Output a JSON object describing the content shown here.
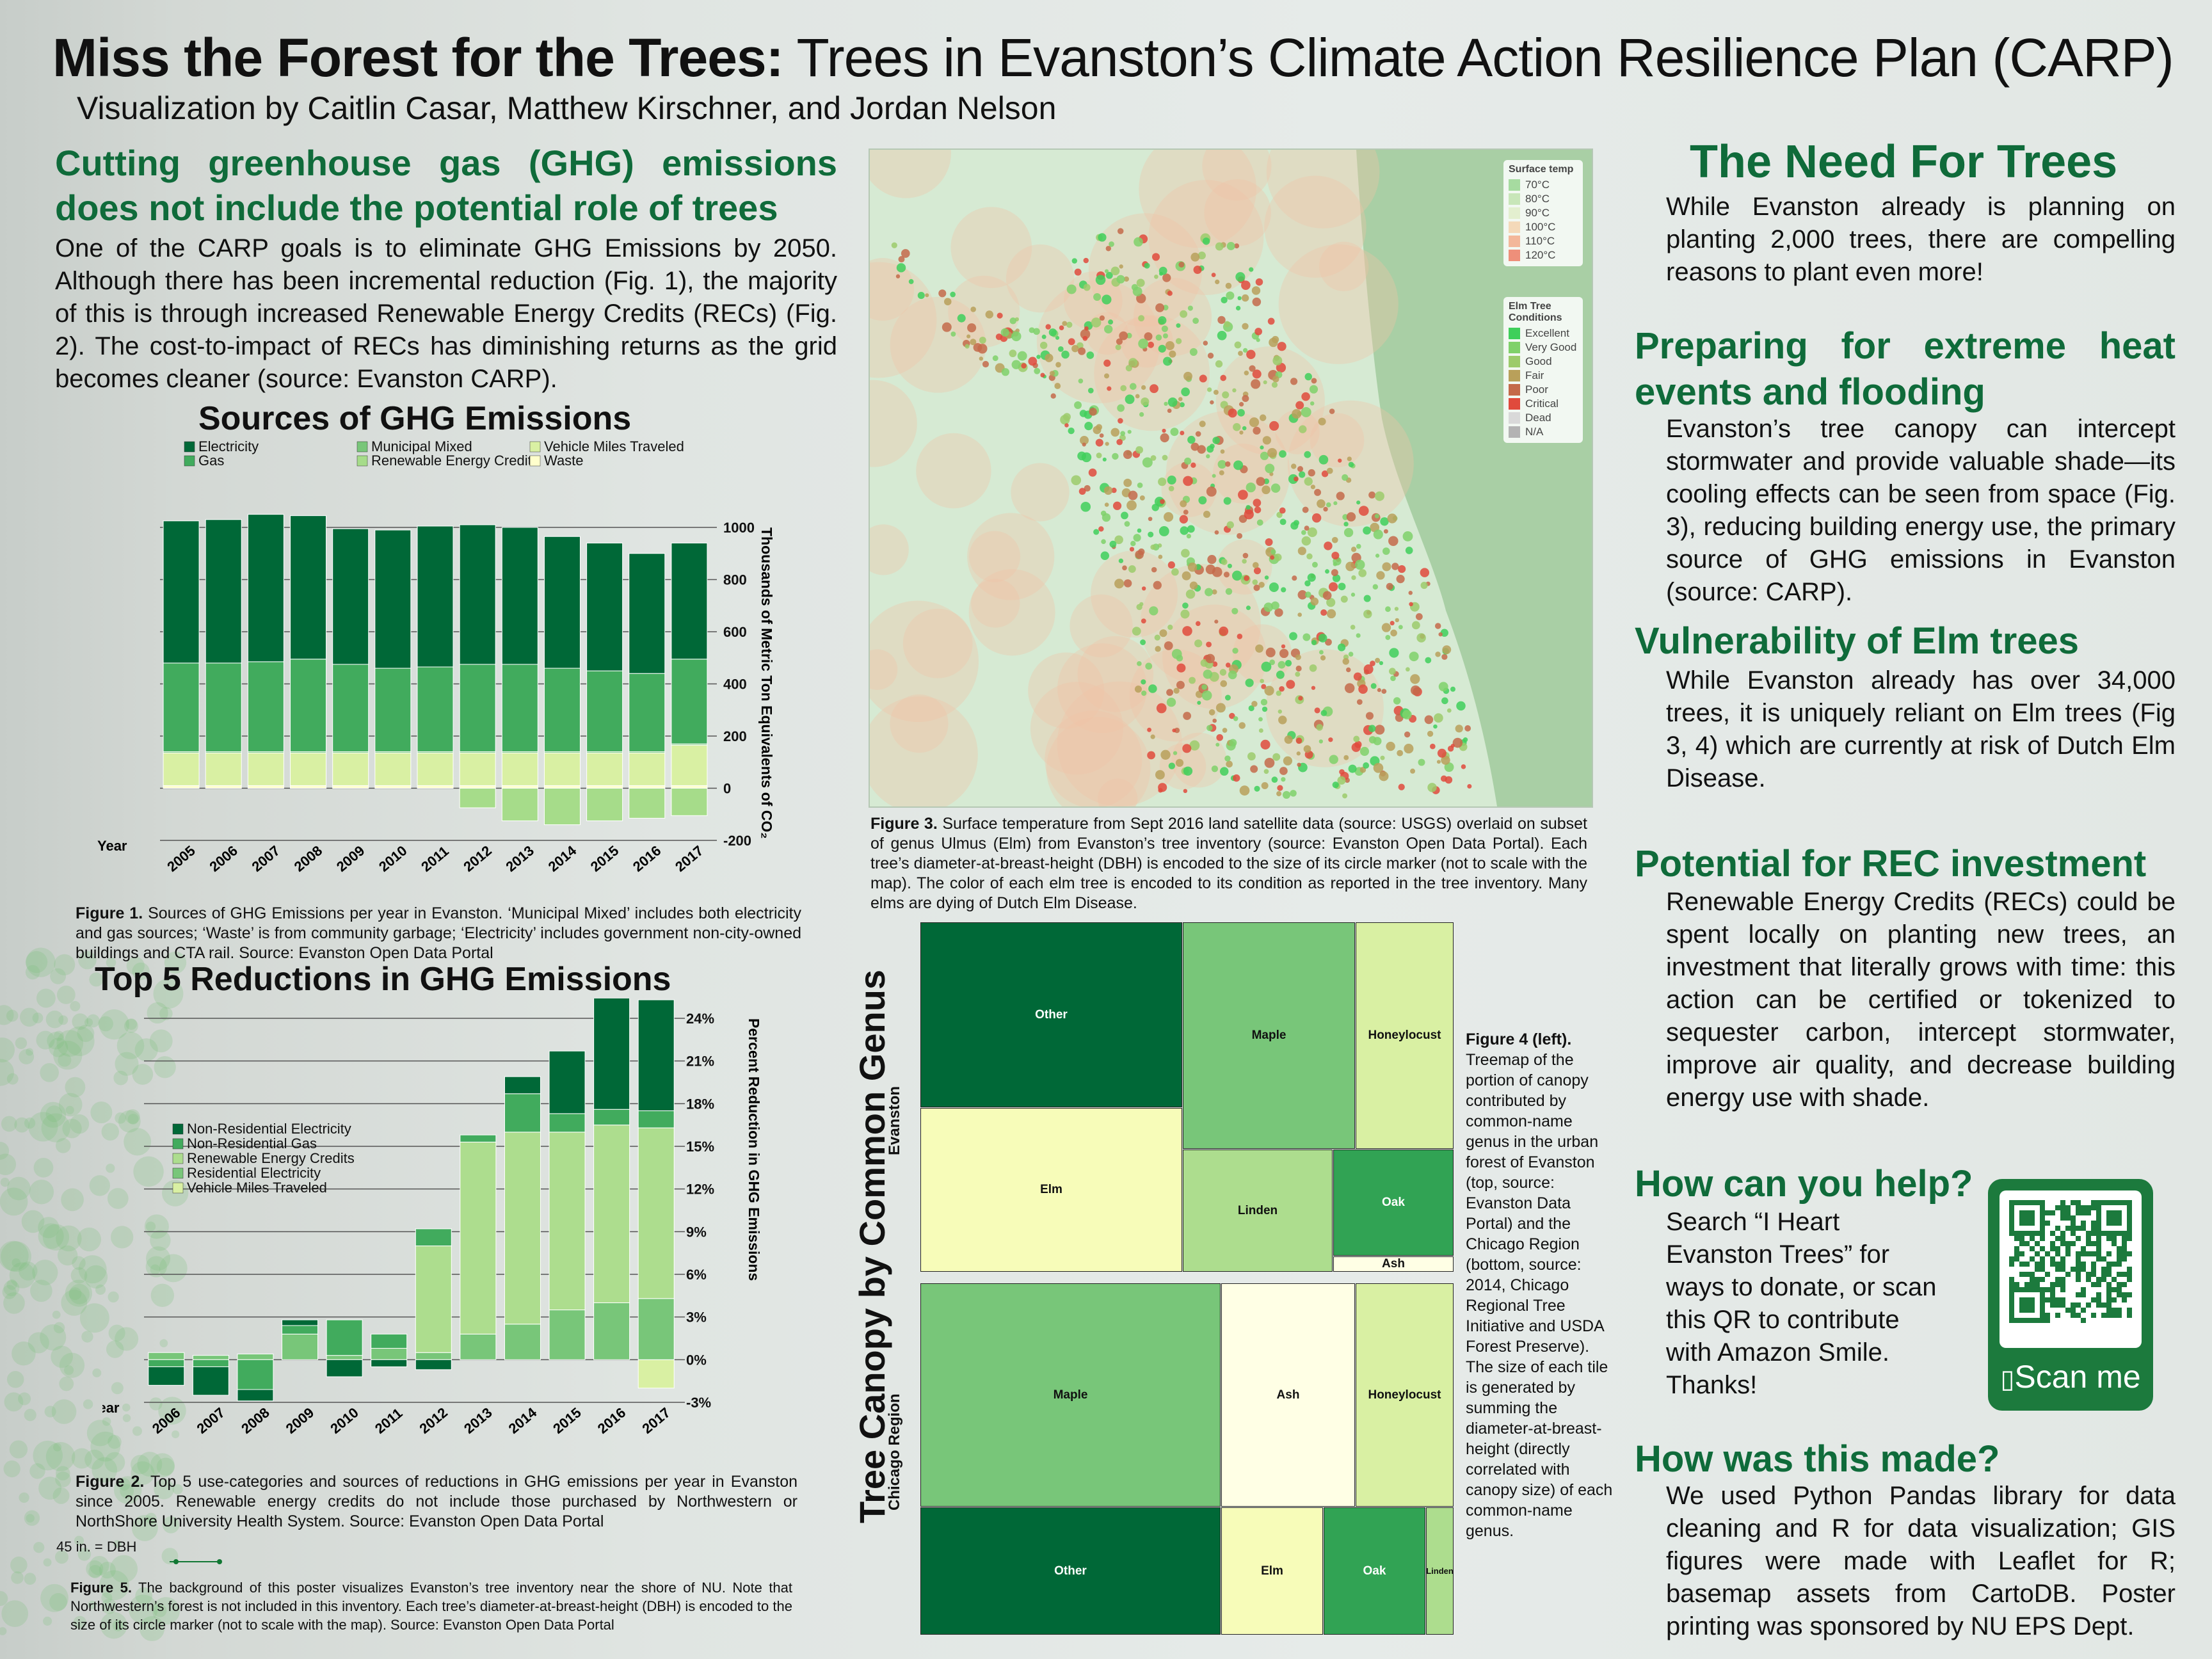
{
  "header": {
    "title_bold": "Miss the Forest for the Trees:",
    "title_rest": " Trees in Evanston’s Climate Action Resilience Plan (CARP)",
    "byline": "Visualization by Caitlin Casar, Matthew Kirschner, and Jordan Nelson"
  },
  "left": {
    "heading_line1": "Cutting greenhouse gas (GHG) emissions",
    "heading_line2": "does not include the potential role of trees",
    "body": "One of the CARP goals is to eliminate GHG Emissions by 2050. Although there has been incremental reduction (Fig. 1), the majority of this is through increased Renewable Energy Credits (RECs) (Fig. 2). The cost-to-impact of RECs has diminishing returns as the grid becomes cleaner (source: Evanston CARP).",
    "fig1_caption_label": "Figure 1.",
    "fig1_caption": " Sources of GHG Emissions per year in Evanston. ‘Municipal Mixed’ includes both electricity and gas sources; ‘Waste’ is from community garbage; ‘Electricity’ includes government non-city-owned buildings and CTA rail. Source: Evanston Open Data Portal",
    "fig2_caption_label": "Figure 2.",
    "fig2_caption": " Top 5 use-categories and sources of reductions in GHG emissions per year in Evanston since 2005. Renewable energy credits do not include those purchased by Northwestern or NorthShore University Health System. Source: Evanston Open Data Portal",
    "dbh_note": "45 in. = DBH",
    "fig5_caption_label": "Figure 5.",
    "fig5_caption": " The background of this poster visualizes Evanston’s tree inventory near the shore of NU. Note that Northwestern’s forest is not included in this inventory. Each tree’s diameter-at-breast-height (DBH) is encoded to the size of its circle marker (not to scale with the map). Source: Evanston Open Data Portal"
  },
  "chart_data": [
    {
      "type": "bar",
      "title": "Sources of GHG Emissions",
      "xlabel": "Year",
      "ylabel": "Thousands of Metric Ton Equivalents of CO₂",
      "ylim": [
        -200,
        1000
      ],
      "yticks": [
        "1000",
        "800",
        "600",
        "400",
        "200",
        "0",
        "-200"
      ],
      "legend_placement": "top",
      "categories": [
        "2005",
        "2006",
        "2007",
        "2008",
        "2009",
        "2010",
        "2011",
        "2012",
        "2013",
        "2014",
        "2015",
        "2016",
        "2017"
      ],
      "series": [
        {
          "name": "Renewable Energy Credit",
          "color": "#a6dc8a",
          "values": [
            0,
            0,
            0,
            0,
            0,
            0,
            0,
            -75,
            -125,
            -140,
            -125,
            -115,
            -105
          ]
        },
        {
          "name": "Waste",
          "color": "#ffffcc",
          "values": [
            10,
            10,
            10,
            10,
            10,
            10,
            10,
            10,
            10,
            10,
            10,
            10,
            10
          ]
        },
        {
          "name": "Vehicle Miles Traveled",
          "color": "#d9f0a3",
          "values": [
            125,
            125,
            125,
            125,
            125,
            125,
            125,
            125,
            125,
            125,
            125,
            125,
            155
          ]
        },
        {
          "name": "Municipal Mixed",
          "color": "#78c679",
          "values": [
            5,
            5,
            5,
            5,
            5,
            5,
            5,
            5,
            5,
            5,
            5,
            5,
            5
          ]
        },
        {
          "name": "Gas",
          "color": "#41ab5d",
          "values": [
            340,
            340,
            345,
            355,
            335,
            320,
            325,
            335,
            335,
            320,
            310,
            300,
            325
          ]
        },
        {
          "name": "Electricity",
          "color": "#006837",
          "values": [
            545,
            550,
            565,
            550,
            520,
            530,
            540,
            535,
            525,
            505,
            490,
            460,
            445
          ]
        }
      ]
    },
    {
      "type": "bar",
      "title": "Top 5 Reductions in GHG Emissions",
      "xlabel": "Year",
      "ylabel": "Percent Reduction in GHG Emissions",
      "ylim": [
        -3,
        24
      ],
      "yticks": [
        "24%",
        "21%",
        "18%",
        "15%",
        "12%",
        "9%",
        "6%",
        "3%",
        "0%",
        "-3%"
      ],
      "legend_placement": "top-left",
      "categories": [
        "2006",
        "2007",
        "2008",
        "2009",
        "2010",
        "2011",
        "2012",
        "2013",
        "2014",
        "2015",
        "2016",
        "2017"
      ],
      "series": [
        {
          "name": "Vehicle Miles Traveled",
          "color": "#d9f0a3",
          "values": [
            0,
            0,
            0,
            0,
            0,
            0,
            0,
            0,
            0,
            0,
            0,
            -2
          ]
        },
        {
          "name": "Residential Electricity",
          "color": "#78c679",
          "values": [
            0.5,
            0.3,
            0.4,
            1.8,
            0.3,
            0.8,
            0.5,
            1.8,
            2.5,
            3.5,
            4,
            4.3
          ]
        },
        {
          "name": "Renewable Energy Credits",
          "color": "#addd8e",
          "values": [
            0,
            0,
            0,
            0,
            0,
            0,
            7.5,
            13.5,
            13.5,
            12.5,
            12.5,
            12
          ]
        },
        {
          "name": "Non-Residential Gas",
          "color": "#41ab5d",
          "values": [
            -0.5,
            -0.5,
            -2.1,
            0.6,
            2.5,
            1,
            1.2,
            0.5,
            2.7,
            1.3,
            1.1,
            1.2
          ]
        },
        {
          "name": "Non-Residential Electricity",
          "color": "#006837",
          "values": [
            -1.3,
            -2,
            -0.8,
            0.4,
            -1.2,
            -0.5,
            -0.7,
            0,
            1.2,
            4.4,
            8.2,
            7.8
          ]
        }
      ]
    }
  ],
  "map": {
    "legend_temp_title": "Surface temp",
    "legend_temp": [
      {
        "label": "70°C",
        "color": "#a6dba0"
      },
      {
        "label": "80°C",
        "color": "#c8e6b9"
      },
      {
        "label": "90°C",
        "color": "#e3efcf"
      },
      {
        "label": "100°C",
        "color": "#f4d9b9"
      },
      {
        "label": "110°C",
        "color": "#f3b79a"
      },
      {
        "label": "120°C",
        "color": "#ee8f7a"
      }
    ],
    "legend_elm_title": "Elm Tree Conditions",
    "legend_elm": [
      {
        "label": "Excellent",
        "color": "#3fcf5a"
      },
      {
        "label": "Very Good",
        "color": "#7fd16a"
      },
      {
        "label": "Good",
        "color": "#9ccb6b"
      },
      {
        "label": "Fair",
        "color": "#b9a05a"
      },
      {
        "label": "Poor",
        "color": "#c46a4a"
      },
      {
        "label": "Critical",
        "color": "#e04a3c"
      },
      {
        "label": "Dead",
        "color": "#d9d9d9"
      },
      {
        "label": "N/A",
        "color": "#b3b3b3"
      }
    ],
    "fig3_caption_label": "Figure 3.",
    "fig3_caption": " Surface temperature from Sept 2016 land satellite data (source: USGS) overlaid on subset of genus Ulmus (Elm) from Evanston’s tree inventory (source: Evanston Open Data Portal). Each tree’s diameter-at-breast-height (DBH) is encoded to the size of its circle marker (not to scale with the map). The color of each elm tree is encoded to its condition as reported in the tree inventory. Many elms are dying of Dutch Elm Disease."
  },
  "treemap": {
    "title": "Tree Canopy by Common Genus",
    "evanston_label": "Evanston",
    "chicago_label": "Chicago Region",
    "evanston": [
      {
        "label": "Other",
        "color": "#006837"
      },
      {
        "label": "Maple",
        "color": "#78c679"
      },
      {
        "label": "Honeylocust",
        "color": "#d9f0a3"
      },
      {
        "label": "Elm",
        "color": "#f7fcb9"
      },
      {
        "label": "Linden",
        "color": "#addd8e"
      },
      {
        "label": "Oak",
        "color": "#31a354"
      },
      {
        "label": "Ash",
        "color": "#ffffe5"
      }
    ],
    "chicago": [
      {
        "label": "Maple",
        "color": "#78c679"
      },
      {
        "label": "Ash",
        "color": "#ffffe5"
      },
      {
        "label": "Honeylocust",
        "color": "#d9f0a3"
      },
      {
        "label": "Other",
        "color": "#006837"
      },
      {
        "label": "Elm",
        "color": "#f7fcb9"
      },
      {
        "label": "Oak",
        "color": "#31a354"
      },
      {
        "label": "Linden",
        "color": "#addd8e"
      }
    ],
    "fig4_caption_label": "Figure 4 (left).",
    "fig4_caption": "Treemap of the portion of canopy contributed by common-name genus in the urban forest of Evanston (top, source: Evanston Data Portal) and the Chicago Region (bottom, source: 2014, Chicago Regional Tree Initiative and USDA Forest Preserve). The size of each tile is generated by summing the diameter-at-breast-height (directly correlated with canopy size) of each common-name genus."
  },
  "right": {
    "need_heading": "The Need For Trees",
    "need_body": "While Evanston already is planning on planting 2,000 trees, there are compelling reasons to plant even more!",
    "heat_heading": "Preparing for extreme heat events and flooding",
    "heat_body": "Evanston’s tree canopy can intercept stormwater and provide valuable shade—its cooling effects can be seen from space (Fig. 3), reducing building energy use, the primary source of GHG emissions in Evanston (source: CARP).",
    "elm_heading": "Vulnerability of Elm trees",
    "elm_body": "While Evanston already has over 34,000 trees, it is uniquely reliant on Elm trees (Fig 3, 4) which are currently at risk of Dutch Elm Disease.",
    "rec_heading": "Potential for REC investment",
    "rec_body": "Renewable Energy Credits (RECs) could be spent locally on planting new trees, an investment that literally grows with time: this action can be certified or tokenized to sequester carbon, intercept stormwater, improve air quality, and decrease building energy use with shade.",
    "help_heading": "How can you help?",
    "help_body": "Search “I Heart Evanston Trees” for ways to donate, or scan this QR to contribute with Amazon Smile. Thanks!",
    "qr_label": "Scan me",
    "made_heading": "How was this made?",
    "made_body": "We used Python Pandas library for data cleaning and R for data visualization; GIS figures were made with Leaflet for R; basemap assets from CartoDB. Poster printing was sponsored by NU EPS Dept."
  }
}
